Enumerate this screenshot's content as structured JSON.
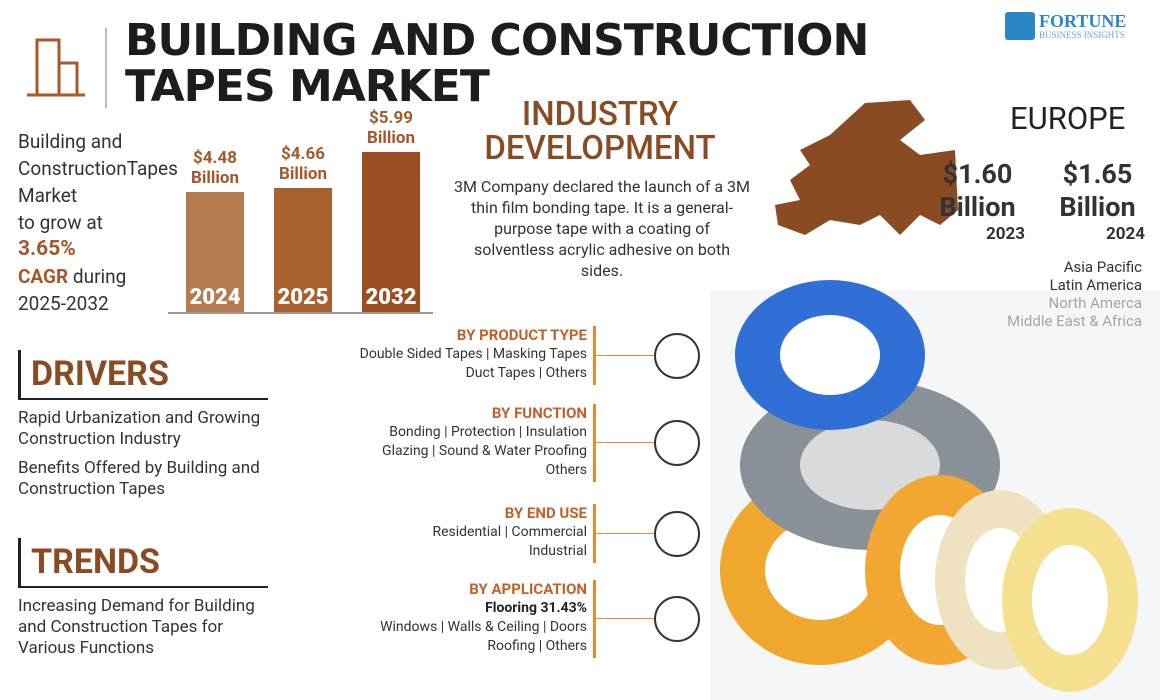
{
  "header": {
    "title": "BUILDING AND CONSTRUCTION TAPES MARKET",
    "brand": "FORTUNE",
    "brand_sub": "BUSINESS INSIGHTS"
  },
  "summary": {
    "lines": [
      "Building and",
      "ConstructionTapes",
      "Market",
      "to grow at"
    ],
    "cagr": "3.65%",
    "cagr_text": "CAGR",
    "during": "during",
    "period": "2025-2032"
  },
  "chart_data": {
    "type": "bar",
    "categories": [
      "2024",
      "2025",
      "2032"
    ],
    "values": [
      4.48,
      4.66,
      5.99
    ],
    "value_labels": [
      "$4.48 Billion",
      "$4.66 Billion",
      "$5.99 Billion"
    ],
    "colors": [
      "#b47a50",
      "#a9602f",
      "#9b4e22"
    ]
  },
  "industry": {
    "title": "INDUSTRY DEVELOPMENT",
    "text": "3M Company declared the launch of a 3M thin film bonding tape. It is a general-purpose tape with a coating of solventless acrylic adhesive on both sides."
  },
  "region": {
    "name": "EUROPE",
    "stats": [
      {
        "value": "$1.60 Billion",
        "year": "2023"
      },
      {
        "value": "$1.65 Billion",
        "year": "2024"
      }
    ],
    "others": [
      "Asia Pacific",
      "Latin America",
      "North Amerca",
      "Middle East & Africa"
    ]
  },
  "drivers": {
    "title": "DRIVERS",
    "items": [
      "Rapid Urbanization and Growing Construction Industry",
      "Benefits Offered by Building and Construction Tapes"
    ]
  },
  "trends": {
    "title": "TRENDS",
    "items": [
      "Increasing Demand for Building and Construction Tapes for Various Functions"
    ]
  },
  "segments": [
    {
      "title": "BY PRODUCT TYPE",
      "lines": [
        "Double Sided Tapes | Masking Tapes",
        "Duct Tapes | Others"
      ]
    },
    {
      "title": "BY FUNCTION",
      "lines": [
        "Bonding | Protection | Insulation",
        "Glazing | Sound & Water Proofing",
        "Others"
      ]
    },
    {
      "title": "BY END USE",
      "lines": [
        "Residential | Commercial",
        "Industrial"
      ]
    },
    {
      "title": "BY APPLICATION",
      "highlight": "Flooring 31.43%",
      "lines": [
        "Windows | Walls & Ceiling | Doors",
        "Roofing | Others"
      ]
    }
  ]
}
